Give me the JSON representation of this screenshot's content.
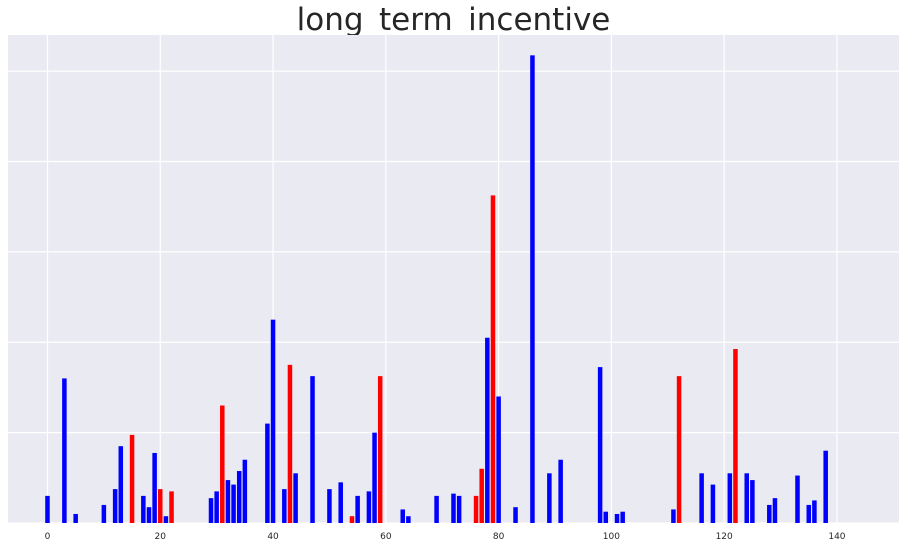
{
  "chart_data": {
    "type": "bar",
    "title": "long_term_incentive",
    "xlabel": "",
    "ylabel": "",
    "xlim": [
      -7,
      151
    ],
    "ylim": [
      0,
      108
    ],
    "xticks": [
      0,
      20,
      40,
      60,
      80,
      100,
      120,
      140
    ],
    "xtick_labels": [
      "0",
      "20",
      "40",
      "60",
      "80",
      "100",
      "120",
      "140"
    ],
    "ytick_values": [
      0,
      20,
      40,
      60,
      80,
      100
    ],
    "ytick_labels_visible": false,
    "grid": true,
    "legend": "none",
    "colors": {
      "background": "#eaeaf2",
      "grid": "#ffffff",
      "class_0": "#0000ff",
      "class_1": "#ff0000"
    },
    "series": [
      {
        "x": [
          0,
          3,
          5,
          10,
          12,
          13,
          15,
          17,
          18,
          19,
          20,
          21,
          22,
          29,
          30,
          31,
          32,
          33,
          34,
          35,
          39,
          40,
          42,
          43,
          44,
          47,
          50,
          52,
          54,
          55,
          57,
          58,
          59,
          63,
          64,
          69,
          72,
          73,
          76,
          77,
          78,
          79,
          80,
          83,
          86,
          89,
          91,
          98,
          99,
          101,
          102,
          111,
          112,
          116,
          118,
          121,
          122,
          124,
          125,
          128,
          129,
          133,
          135,
          136,
          138
        ],
        "values": [
          6,
          32,
          2,
          4,
          7.5,
          17,
          19.5,
          6,
          3.5,
          15.5,
          7.5,
          1.5,
          7,
          5.5,
          7,
          26,
          9.5,
          8.5,
          11.5,
          14,
          22,
          45,
          7.5,
          35,
          11,
          32.5,
          7.5,
          9,
          1.5,
          6,
          7,
          20,
          32.5,
          3,
          1.5,
          6,
          6.5,
          6,
          6,
          12,
          41,
          72.5,
          28,
          3.5,
          103.5,
          11,
          14,
          34.5,
          2.5,
          2,
          2.5,
          3,
          32.5,
          11,
          8.5,
          11,
          38.5,
          11,
          9.5,
          4,
          5.5,
          10.5,
          4,
          5,
          16
        ],
        "classes": [
          0,
          0,
          0,
          0,
          0,
          0,
          1,
          0,
          0,
          0,
          1,
          0,
          1,
          0,
          0,
          1,
          0,
          0,
          0,
          0,
          0,
          0,
          0,
          1,
          0,
          0,
          0,
          0,
          1,
          0,
          0,
          0,
          1,
          0,
          0,
          0,
          0,
          0,
          1,
          1,
          0,
          1,
          0,
          0,
          0,
          0,
          0,
          0,
          0,
          0,
          0,
          0,
          1,
          0,
          0,
          0,
          1,
          0,
          0,
          0,
          0,
          0,
          0,
          0,
          0
        ]
      }
    ]
  }
}
